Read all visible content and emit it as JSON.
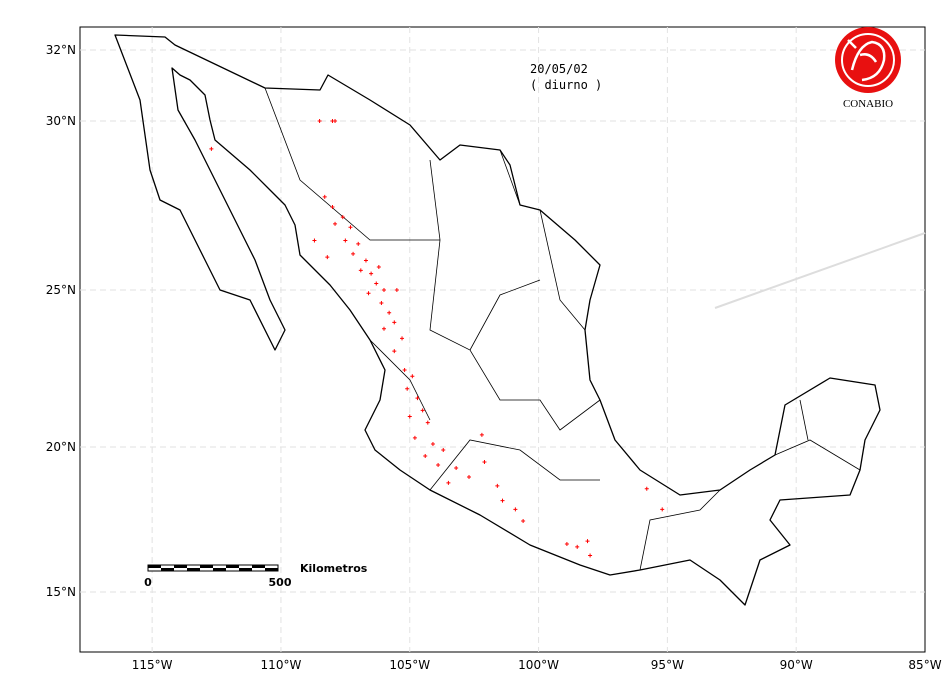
{
  "map": {
    "date": "20/05/02",
    "period": "( diurno )",
    "logo": "CONABIO",
    "lon_range": [
      -117.8,
      -85
    ],
    "lat_ticks": [
      {
        "value": 32,
        "label": "32°N"
      },
      {
        "value": 30,
        "label": "30°N"
      },
      {
        "value": 25,
        "label": "25°N"
      },
      {
        "value": 20,
        "label": "20°N"
      },
      {
        "value": 15,
        "label": "15°N"
      }
    ],
    "lon_ticks": [
      {
        "value": -115,
        "label": "115°W"
      },
      {
        "value": -110,
        "label": "110°W"
      },
      {
        "value": -105,
        "label": "105°W"
      },
      {
        "value": -100,
        "label": "100°W"
      },
      {
        "value": -95,
        "label": "95°W"
      },
      {
        "value": -90,
        "label": "90°W"
      },
      {
        "value": -85,
        "label": "85°W"
      }
    ],
    "scale_bar": {
      "unit": "Kilometros",
      "start": "0",
      "end": "500"
    },
    "hotspots": {
      "lon": [
        -108.5,
        -108.0,
        -107.9,
        -112.7,
        -108.3,
        -108.0,
        -107.6,
        -107.9,
        -107.3,
        -107.5,
        -107.0,
        -107.2,
        -106.7,
        -106.9,
        -106.5,
        -106.3,
        -106.0,
        -106.6,
        -106.1,
        -105.8,
        -105.6,
        -106.0,
        -105.3,
        -105.6,
        -108.7,
        -108.2,
        -106.2,
        -105.5,
        -105.2,
        -104.9,
        -105.1,
        -104.7,
        -104.5,
        -105.0,
        -104.3,
        -104.8,
        -104.1,
        -103.7,
        -104.4,
        -103.9,
        -103.2,
        -102.7,
        -103.5,
        -102.1,
        -101.6,
        -102.2,
        -100.9,
        -100.6,
        -98.9,
        -98.5,
        -98.1,
        -98.0,
        -95.8,
        -95.2,
        -101.4
      ],
      "lat": [
        30.0,
        30.0,
        30.0,
        29.2,
        27.8,
        27.5,
        27.2,
        27.0,
        26.9,
        26.5,
        26.4,
        26.1,
        25.9,
        25.6,
        25.5,
        25.2,
        25.0,
        24.9,
        24.6,
        24.3,
        24.0,
        23.8,
        23.5,
        23.1,
        26.5,
        26.0,
        25.7,
        25.0,
        22.5,
        22.3,
        21.9,
        21.6,
        21.2,
        21.0,
        20.8,
        20.3,
        20.1,
        19.9,
        19.7,
        19.4,
        19.3,
        19.0,
        18.8,
        19.5,
        18.7,
        20.4,
        17.9,
        17.5,
        16.7,
        16.6,
        16.8,
        16.3,
        18.6,
        17.9,
        18.2
      ]
    }
  }
}
